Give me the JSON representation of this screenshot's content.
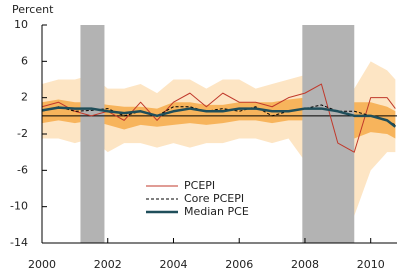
{
  "chart_data": {
    "type": "line",
    "y_label": "Percent",
    "x": [
      2000.0,
      2000.5,
      2001.0,
      2001.5,
      2002.0,
      2002.5,
      2003.0,
      2003.5,
      2004.0,
      2004.5,
      2005.0,
      2005.5,
      2006.0,
      2006.5,
      2007.0,
      2007.5,
      2008.0,
      2008.5,
      2009.0,
      2009.5,
      2010.0,
      2010.5,
      2010.75
    ],
    "xlim": [
      2000,
      2010.8
    ],
    "xticks": [
      2000,
      2002,
      2004,
      2006,
      2008,
      2010
    ],
    "ylim": [
      -14,
      10
    ],
    "yticks": [
      10,
      6,
      2,
      -2,
      -6,
      -10,
      -14
    ],
    "shading": {
      "color": "#b3b3b3",
      "spans": [
        [
          2001.17,
          2001.9
        ],
        [
          2007.92,
          2009.5
        ]
      ]
    },
    "bands": [
      {
        "color": "#fde5c4",
        "lower": [
          -2.5,
          -2.5,
          -3,
          -2.5,
          -4,
          -3,
          -3,
          -3.5,
          -3,
          -3.5,
          -3,
          -3,
          -2.5,
          -2.5,
          -3,
          -2.5,
          -5,
          -4,
          -10,
          -11,
          -6,
          -4,
          -4
        ],
        "upper": [
          3.5,
          4,
          4,
          4.5,
          3,
          3,
          3.5,
          2.5,
          4,
          4,
          3,
          4,
          4,
          3,
          3.5,
          4,
          4.5,
          5,
          4,
          3,
          6,
          5,
          4
        ]
      },
      {
        "color": "#f7b45c",
        "lower": [
          -0.8,
          -0.5,
          -0.8,
          -0.5,
          -1.0,
          -1.5,
          -1.0,
          -1.2,
          -1.0,
          -0.8,
          -1.0,
          -0.8,
          -0.5,
          -0.5,
          -0.8,
          -0.5,
          -0.5,
          -0.8,
          -2.0,
          -2.5,
          -1.8,
          -2,
          -2.5
        ],
        "upper": [
          1.5,
          1.8,
          1.5,
          1.5,
          1.2,
          1.0,
          1.0,
          0.8,
          1.5,
          1.5,
          1.2,
          1.2,
          1.5,
          1.5,
          1.5,
          1.8,
          2.0,
          2.5,
          2.0,
          1.5,
          1.5,
          1.0,
          0.5
        ]
      }
    ],
    "series": [
      {
        "name": "PCEPI",
        "color": "#c0392b",
        "width": 1,
        "dash": false,
        "values": [
          1.0,
          1.5,
          0.5,
          0.0,
          0.5,
          -0.5,
          1.5,
          -0.5,
          1.5,
          2.5,
          1.0,
          2.5,
          1.5,
          1.5,
          1.0,
          2.0,
          2.5,
          3.5,
          -3.0,
          -4.0,
          2.0,
          2.0,
          0.8
        ]
      },
      {
        "name": "Core PCEPI",
        "color": "#000000",
        "width": 1,
        "dash": true,
        "values": [
          0.5,
          1.0,
          0.5,
          0.6,
          0.8,
          0.0,
          0.5,
          0.0,
          1.0,
          1.0,
          0.5,
          0.8,
          0.5,
          1.0,
          0.0,
          0.5,
          0.8,
          1.2,
          0.5,
          0.5,
          0.0,
          -0.5,
          -1.0
        ]
      },
      {
        "name": "Median PCE",
        "color": "#1f4e5a",
        "width": 2.5,
        "dash": false,
        "values": [
          0.6,
          0.9,
          0.8,
          0.8,
          0.5,
          0.3,
          0.5,
          0.0,
          0.5,
          0.8,
          0.5,
          0.5,
          0.8,
          0.8,
          0.5,
          0.5,
          0.8,
          0.8,
          0.5,
          0.0,
          0.0,
          -0.5,
          -1.2
        ]
      }
    ]
  }
}
